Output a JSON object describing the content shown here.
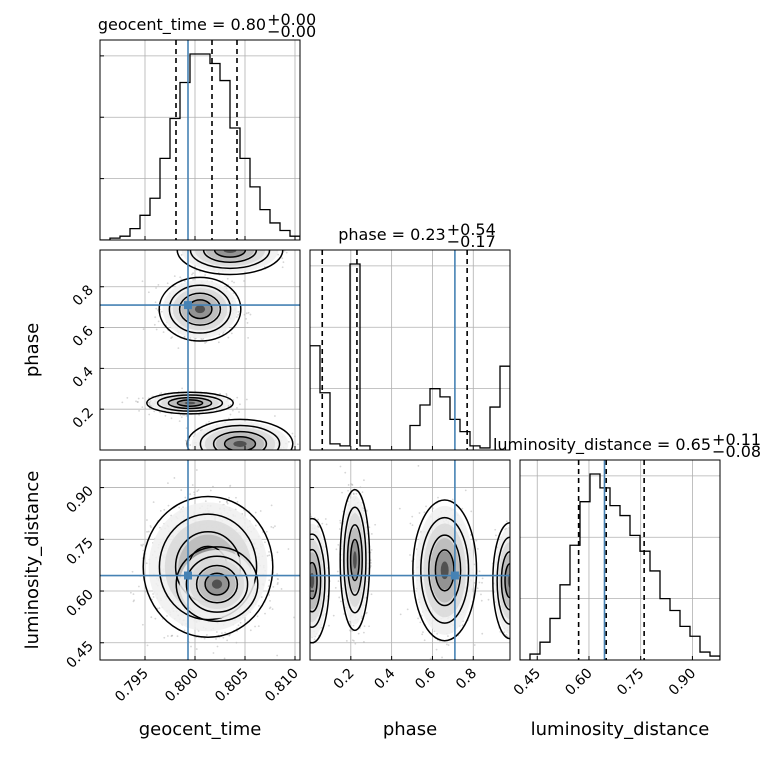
{
  "chart_data": {
    "type": "corner",
    "parameters": [
      "geocent_time",
      "phase",
      "luminosity_distance"
    ],
    "truths": {
      "geocent_time": 0.7993,
      "phase": 0.71,
      "luminosity_distance": 0.645
    },
    "grid": true,
    "colors": {
      "hist": "#000000",
      "truth": "#4682b4",
      "quantile": "#000000",
      "scatter": "#b3b3b3"
    },
    "panels": [
      {
        "name": "hist-geocent_time",
        "title_param": "geocent_time",
        "title_value": "0.80",
        "title_plus": "+0.00",
        "title_minus": "−0.00",
        "xlim": [
          0.7905,
          0.8105
        ],
        "quantiles": [
          0.7981,
          0.8017,
          0.8042
        ],
        "truth": 0.7993,
        "bin_edges": [
          0.7905,
          0.7915,
          0.7925,
          0.7935,
          0.7945,
          0.7955,
          0.7965,
          0.7975,
          0.7985,
          0.7995,
          0.8005,
          0.8015,
          0.8025,
          0.8035,
          0.8045,
          0.8055,
          0.8065,
          0.8075,
          0.8085,
          0.8095,
          0.8105
        ],
        "counts": [
          0.0,
          0.01,
          0.02,
          0.06,
          0.13,
          0.22,
          0.43,
          0.64,
          0.83,
          0.98,
          0.98,
          0.93,
          0.84,
          0.59,
          0.43,
          0.28,
          0.16,
          0.09,
          0.05,
          0.02
        ]
      },
      {
        "name": "hist-phase",
        "title_param": "phase",
        "title_value": "0.23",
        "title_plus": "+0.54",
        "title_minus": "−0.17",
        "xlim": [
          0.0,
          0.98
        ],
        "quantiles": [
          0.06,
          0.23,
          0.77
        ],
        "truth": 0.71,
        "bin_edges": [
          0.0,
          0.049,
          0.098,
          0.147,
          0.196,
          0.245,
          0.294,
          0.343,
          0.392,
          0.441,
          0.49,
          0.539,
          0.588,
          0.637,
          0.686,
          0.735,
          0.784,
          0.833,
          0.882,
          0.931,
          0.98
        ],
        "counts": [
          0.51,
          0.28,
          0.03,
          0.02,
          0.91,
          0.02,
          0.0,
          0.0,
          0.0,
          0.0,
          0.12,
          0.22,
          0.3,
          0.26,
          0.15,
          0.09,
          0.02,
          0.01,
          0.21,
          0.41
        ]
      },
      {
        "name": "hist-luminosity_distance",
        "title_param": "luminosity_distance",
        "title_value": "0.65",
        "title_plus": "+0.11",
        "title_minus": "−0.08",
        "xlim": [
          0.4,
          0.98
        ],
        "quantiles": [
          0.57,
          0.65,
          0.76
        ],
        "truth": 0.645,
        "bin_edges": [
          0.4,
          0.429,
          0.458,
          0.487,
          0.516,
          0.545,
          0.574,
          0.603,
          0.632,
          0.661,
          0.69,
          0.719,
          0.748,
          0.777,
          0.806,
          0.835,
          0.864,
          0.893,
          0.922,
          0.951,
          0.98
        ],
        "counts": [
          0.0,
          0.03,
          0.09,
          0.21,
          0.38,
          0.58,
          0.8,
          0.94,
          0.87,
          0.78,
          0.73,
          0.63,
          0.55,
          0.45,
          0.31,
          0.25,
          0.17,
          0.12,
          0.04,
          0.02
        ]
      }
    ],
    "pairs": [
      {
        "name": "phase-vs-geocent_time",
        "x_param": "geocent_time",
        "y_param": "phase",
        "xlim": [
          0.7905,
          0.8105
        ],
        "ylim": [
          0.0,
          0.98
        ],
        "modes": [
          {
            "cx": 0.7995,
            "cy": 0.23,
            "sx": 0.0018,
            "sy": 0.022,
            "w": 0.42
          },
          {
            "cx": 0.8005,
            "cy": 0.69,
            "sx": 0.0017,
            "sy": 0.065,
            "w": 0.28
          },
          {
            "cx": 0.8045,
            "cy": 0.03,
            "sx": 0.0022,
            "sy": 0.05,
            "w": 0.17
          },
          {
            "cx": 0.8035,
            "cy": 0.98,
            "sx": 0.0022,
            "sy": 0.05,
            "w": 0.13
          }
        ]
      },
      {
        "name": "luminosity_distance-vs-geocent_time",
        "x_param": "geocent_time",
        "y_param": "luminosity_distance",
        "xlim": [
          0.7905,
          0.8105
        ],
        "ylim": [
          0.4,
          0.98
        ],
        "modes": [
          {
            "cx": 0.8013,
            "cy": 0.67,
            "sx": 0.0027,
            "sy": 0.085,
            "w": 0.65
          },
          {
            "cx": 0.8022,
            "cy": 0.62,
            "sx": 0.0017,
            "sy": 0.045,
            "w": 0.35
          }
        ]
      },
      {
        "name": "luminosity_distance-vs-phase",
        "x_param": "phase",
        "y_param": "luminosity_distance",
        "xlim": [
          0.0,
          0.98
        ],
        "ylim": [
          0.4,
          0.98
        ],
        "modes": [
          {
            "cx": 0.22,
            "cy": 0.69,
            "sx": 0.03,
            "sy": 0.085,
            "w": 0.36
          },
          {
            "cx": 0.01,
            "cy": 0.63,
            "sx": 0.035,
            "sy": 0.075,
            "w": 0.2
          },
          {
            "cx": 0.66,
            "cy": 0.66,
            "sx": 0.065,
            "sy": 0.085,
            "w": 0.3
          },
          {
            "cx": 0.98,
            "cy": 0.63,
            "sx": 0.035,
            "sy": 0.07,
            "w": 0.14
          }
        ]
      }
    ],
    "x_axes": [
      {
        "param": "geocent_time",
        "label": "geocent_time",
        "ticks": [
          0.795,
          0.8,
          0.805,
          0.81
        ],
        "tick_labels": [
          "0.795",
          "0.800",
          "0.805",
          "0.810"
        ]
      },
      {
        "param": "phase",
        "label": "phase",
        "ticks": [
          0.2,
          0.4,
          0.6,
          0.8
        ],
        "tick_labels": [
          "0.2",
          "0.4",
          "0.6",
          "0.8"
        ]
      },
      {
        "param": "luminosity_distance",
        "label": "luminosity_distance",
        "ticks": [
          0.45,
          0.6,
          0.75,
          0.9
        ],
        "tick_labels": [
          "0.45",
          "0.60",
          "0.75",
          "0.90"
        ]
      }
    ],
    "y_axes": [
      {
        "param": "phase",
        "label": "phase",
        "ticks": [
          0.2,
          0.4,
          0.6,
          0.8
        ],
        "tick_labels": [
          "0.2",
          "0.4",
          "0.6",
          "0.8"
        ]
      },
      {
        "param": "luminosity_distance",
        "label": "luminosity_distance",
        "ticks": [
          0.45,
          0.6,
          0.75,
          0.9
        ],
        "tick_labels": [
          "0.45",
          "0.60",
          "0.75",
          "0.90"
        ]
      }
    ]
  }
}
